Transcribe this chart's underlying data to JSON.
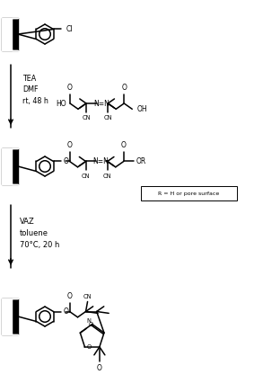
{
  "background": "#ffffff",
  "fig_width": 2.83,
  "fig_height": 4.36,
  "dpi": 100,
  "step1_text": "TEA\nDMF\nrt, 48 h",
  "step2_text": "VAZ\ntoluene\n70°C, 20 h",
  "R_box_text": "R = H or pore surface",
  "lw": 1.1,
  "fs": 5.5,
  "fss": 4.8
}
